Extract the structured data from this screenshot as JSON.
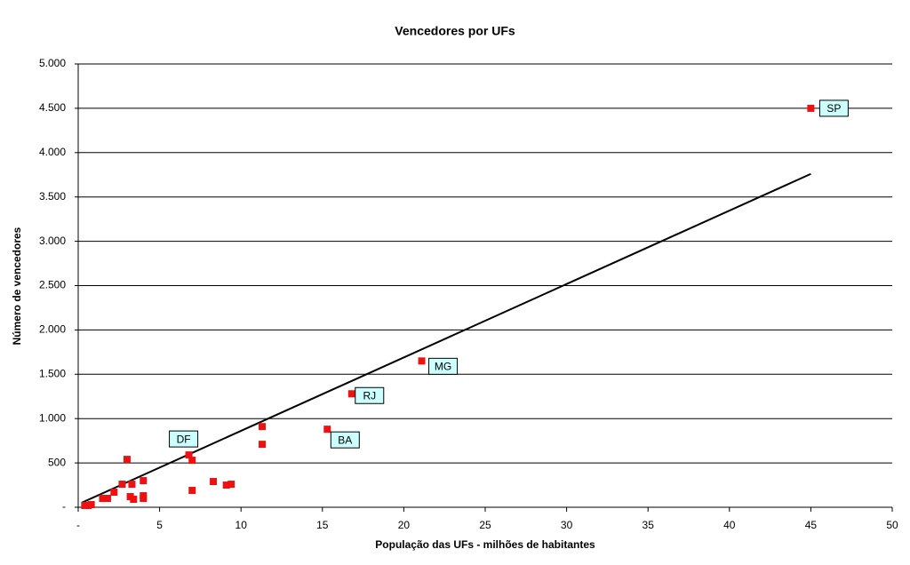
{
  "chart_data": {
    "type": "scatter",
    "title": "Vencedores por UFs",
    "x_label": "População das UFs - milhões de habitantes",
    "y_label": "Número de vencedores",
    "x": [
      45.0,
      21.1,
      16.8,
      15.3,
      6.8,
      7.0,
      11.3,
      11.3,
      3.0,
      7.0,
      8.3,
      9.1,
      9.4,
      2.7,
      3.3,
      4.0,
      2.2,
      1.8,
      1.5,
      3.2,
      3.4,
      4.0,
      4.0,
      0.4,
      0.6,
      0.8
    ],
    "values": [
      4500,
      1650,
      1280,
      880,
      590,
      530,
      910,
      710,
      540,
      190,
      290,
      250,
      260,
      260,
      260,
      300,
      170,
      100,
      100,
      120,
      90,
      130,
      100,
      20,
      20,
      30
    ],
    "point_labels": [
      "SP",
      "MG",
      "RJ",
      "BA",
      "DF",
      null,
      null,
      null,
      null,
      null,
      null,
      null,
      null,
      null,
      null,
      null,
      null,
      null,
      null,
      null,
      null,
      null,
      null,
      null,
      null,
      null
    ],
    "color": "#ee1111",
    "trendline": {
      "x": [
        0.2,
        45
      ],
      "values": [
        50,
        3760
      ],
      "color": "#000000"
    },
    "xlim": [
      0,
      50
    ],
    "xticks": [
      {
        "value": 0,
        "label": "-"
      },
      5,
      10,
      15,
      20,
      25,
      30,
      35,
      40,
      45,
      50
    ],
    "ylim": [
      0,
      5000
    ],
    "yticks": [
      {
        "value": 0,
        "label": "-"
      },
      {
        "value": 500,
        "label": "500"
      },
      {
        "value": 1000,
        "label": "1.000"
      },
      {
        "value": 1500,
        "label": "1.500"
      },
      {
        "value": 2000,
        "label": "2.000"
      },
      {
        "value": 2500,
        "label": "2.500"
      },
      {
        "value": 3000,
        "label": "3.000"
      },
      {
        "value": 3500,
        "label": "3.500"
      },
      {
        "value": 4000,
        "label": "4.000"
      },
      {
        "value": 4500,
        "label": "4.500"
      },
      {
        "value": 5000,
        "label": "5.000"
      }
    ],
    "grid": true
  }
}
